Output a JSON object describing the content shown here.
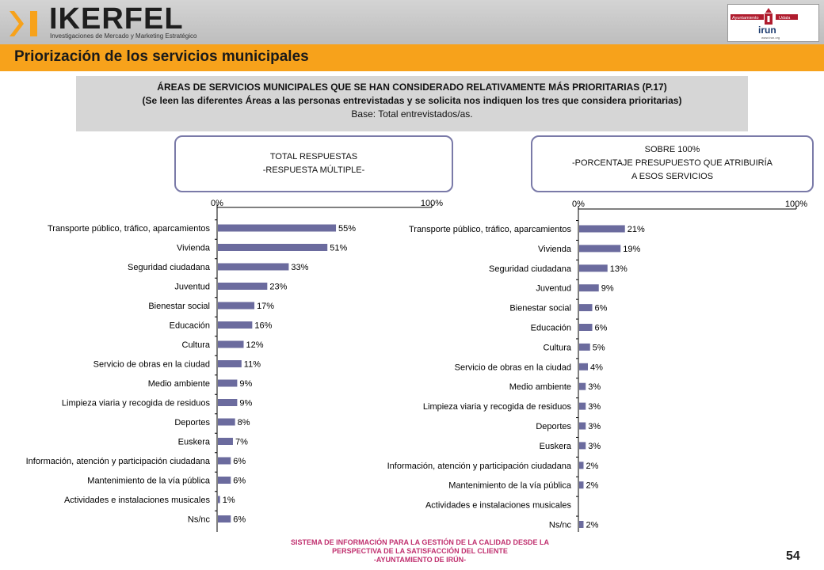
{
  "header": {
    "brand": "IKERFEL",
    "tagline": "Investigaciones de Mercado y Marketing Estratégico",
    "client_logo": {
      "top_left": "Ayuntamiento",
      "top_right": "Udala",
      "name": "irun",
      "url": "www.irun.org"
    }
  },
  "page_title": "Priorización de los servicios municipales",
  "question": {
    "line1": "ÁREAS DE SERVICIOS MUNICIPALES QUE SE HAN CONSIDERADO RELATIVAMENTE MÁS PRIORITARIAS (P.17)",
    "line2": "(Se leen las diferentes Áreas a las personas entrevistadas y se solicita nos indiquen los tres que considera prioritarias)",
    "line3": "Base: Total entrevistados/as."
  },
  "left_box": {
    "line1": "TOTAL RESPUESTAS",
    "line2": "-RESPUESTA MÚLTIPLE-"
  },
  "right_box": {
    "line1": "SOBRE 100%",
    "line2": "-PORCENTAJE PRESUPUESTO QUE ATRIBUIRÍA",
    "line3": "A ESOS SERVICIOS"
  },
  "colors": {
    "bar": "#6b6b9e",
    "orange": "#f7a21b",
    "footer": "#c0306f"
  },
  "chart_data": [
    {
      "type": "bar",
      "orientation": "horizontal",
      "title": "TOTAL RESPUESTAS -RESPUESTA MÚLTIPLE-",
      "xlim": [
        0,
        100
      ],
      "tick_labels": [
        "0%",
        "100%"
      ],
      "categories": [
        "Transporte público, tráfico, aparcamientos",
        "Vivienda",
        "Seguridad ciudadana",
        "Juventud",
        "Bienestar social",
        "Educación",
        "Cultura",
        "Servicio de obras en la ciudad",
        "Medio ambiente",
        "Limpieza viaria y recogida de residuos",
        "Deportes",
        "Euskera",
        "Información, atención y participación ciudadana",
        "Mantenimiento de la vía pública",
        "Actividades e instalaciones musicales",
        "Ns/nc"
      ],
      "values": [
        55,
        51,
        33,
        23,
        17,
        16,
        12,
        11,
        9,
        9,
        8,
        7,
        6,
        6,
        1,
        6
      ],
      "labels": [
        "55%",
        "51%",
        "33%",
        "23%",
        "17%",
        "16%",
        "12%",
        "11%",
        "9%",
        "9%",
        "8%",
        "7%",
        "6%",
        "6%",
        "1%",
        "6%"
      ]
    },
    {
      "type": "bar",
      "orientation": "horizontal",
      "title": "SOBRE 100% -PORCENTAJE PRESUPUESTO QUE ATRIBUIRÍA A ESOS SERVICIOS",
      "xlim": [
        0,
        100
      ],
      "tick_labels": [
        "0%",
        "100%"
      ],
      "categories": [
        "Transporte público, tráfico, aparcamientos",
        "Vivienda",
        "Seguridad ciudadana",
        "Juventud",
        "Bienestar social",
        "Educación",
        "Cultura",
        "Servicio de obras en la ciudad",
        "Medio ambiente",
        "Limpieza viaria y recogida de residuos",
        "Deportes",
        "Euskera",
        "Información, atención y participación ciudadana",
        "Mantenimiento de la vía pública",
        "Actividades e instalaciones musicales",
        "Ns/nc"
      ],
      "values": [
        21,
        19,
        13,
        9,
        6,
        6,
        5,
        4,
        3,
        3,
        3,
        3,
        2,
        2,
        0,
        2
      ],
      "labels": [
        "21%",
        "19%",
        "13%",
        "9%",
        "6%",
        "6%",
        "5%",
        "4%",
        "3%",
        "3%",
        "3%",
        "3%",
        "2%",
        "2%",
        "",
        "2%"
      ]
    }
  ],
  "footer": {
    "line1": "SISTEMA DE INFORMACIÓN PARA LA GESTIÓN DE LA CALIDAD DESDE LA",
    "line2": "PERSPECTIVA DE LA SATISFACCIÓN DEL CLIENTE",
    "line3": "-AYUNTAMIENTO DE IRÚN-",
    "page_number": "54"
  }
}
